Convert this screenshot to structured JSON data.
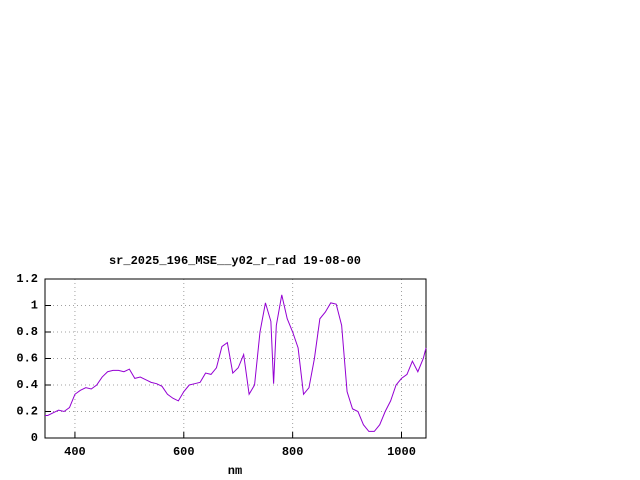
{
  "chart_data": {
    "type": "line",
    "title": "sr_2025_196_MSE__y02_r_rad 19-08-00",
    "x_label": "nm",
    "x": [
      345,
      350,
      360,
      370,
      380,
      390,
      400,
      410,
      420,
      430,
      440,
      450,
      460,
      470,
      480,
      490,
      500,
      510,
      520,
      530,
      540,
      550,
      560,
      570,
      580,
      590,
      600,
      610,
      620,
      630,
      640,
      650,
      660,
      670,
      680,
      690,
      700,
      710,
      720,
      730,
      740,
      750,
      760,
      765,
      770,
      780,
      790,
      800,
      810,
      820,
      830,
      840,
      850,
      860,
      870,
      880,
      890,
      900,
      910,
      920,
      930,
      940,
      950,
      960,
      970,
      980,
      990,
      1000,
      1010,
      1020,
      1030,
      1040,
      1045
    ],
    "series": [
      {
        "name": "sr_2025_196_MSE__y02_r_rad",
        "color": "#9400d3",
        "values": [
          0.17,
          0.17,
          0.19,
          0.21,
          0.2,
          0.23,
          0.33,
          0.36,
          0.38,
          0.37,
          0.4,
          0.46,
          0.5,
          0.51,
          0.51,
          0.5,
          0.52,
          0.45,
          0.46,
          0.44,
          0.42,
          0.41,
          0.39,
          0.33,
          0.3,
          0.28,
          0.35,
          0.4,
          0.41,
          0.42,
          0.49,
          0.48,
          0.53,
          0.69,
          0.72,
          0.49,
          0.53,
          0.63,
          0.33,
          0.4,
          0.8,
          1.02,
          0.88,
          0.41,
          0.85,
          1.08,
          0.9,
          0.8,
          0.68,
          0.33,
          0.38,
          0.6,
          0.9,
          0.95,
          1.02,
          1.01,
          0.85,
          0.35,
          0.22,
          0.2,
          0.1,
          0.05,
          0.05,
          0.1,
          0.2,
          0.28,
          0.4,
          0.45,
          0.48,
          0.58,
          0.5,
          0.6,
          0.68
        ]
      }
    ],
    "xlim": [
      345,
      1045
    ],
    "ylim": [
      0,
      1.2
    ],
    "xticks": [
      400,
      600,
      800,
      1000
    ],
    "yticks": [
      0,
      0.2,
      0.4,
      0.6,
      0.8,
      1,
      1.2
    ],
    "grid": true
  }
}
